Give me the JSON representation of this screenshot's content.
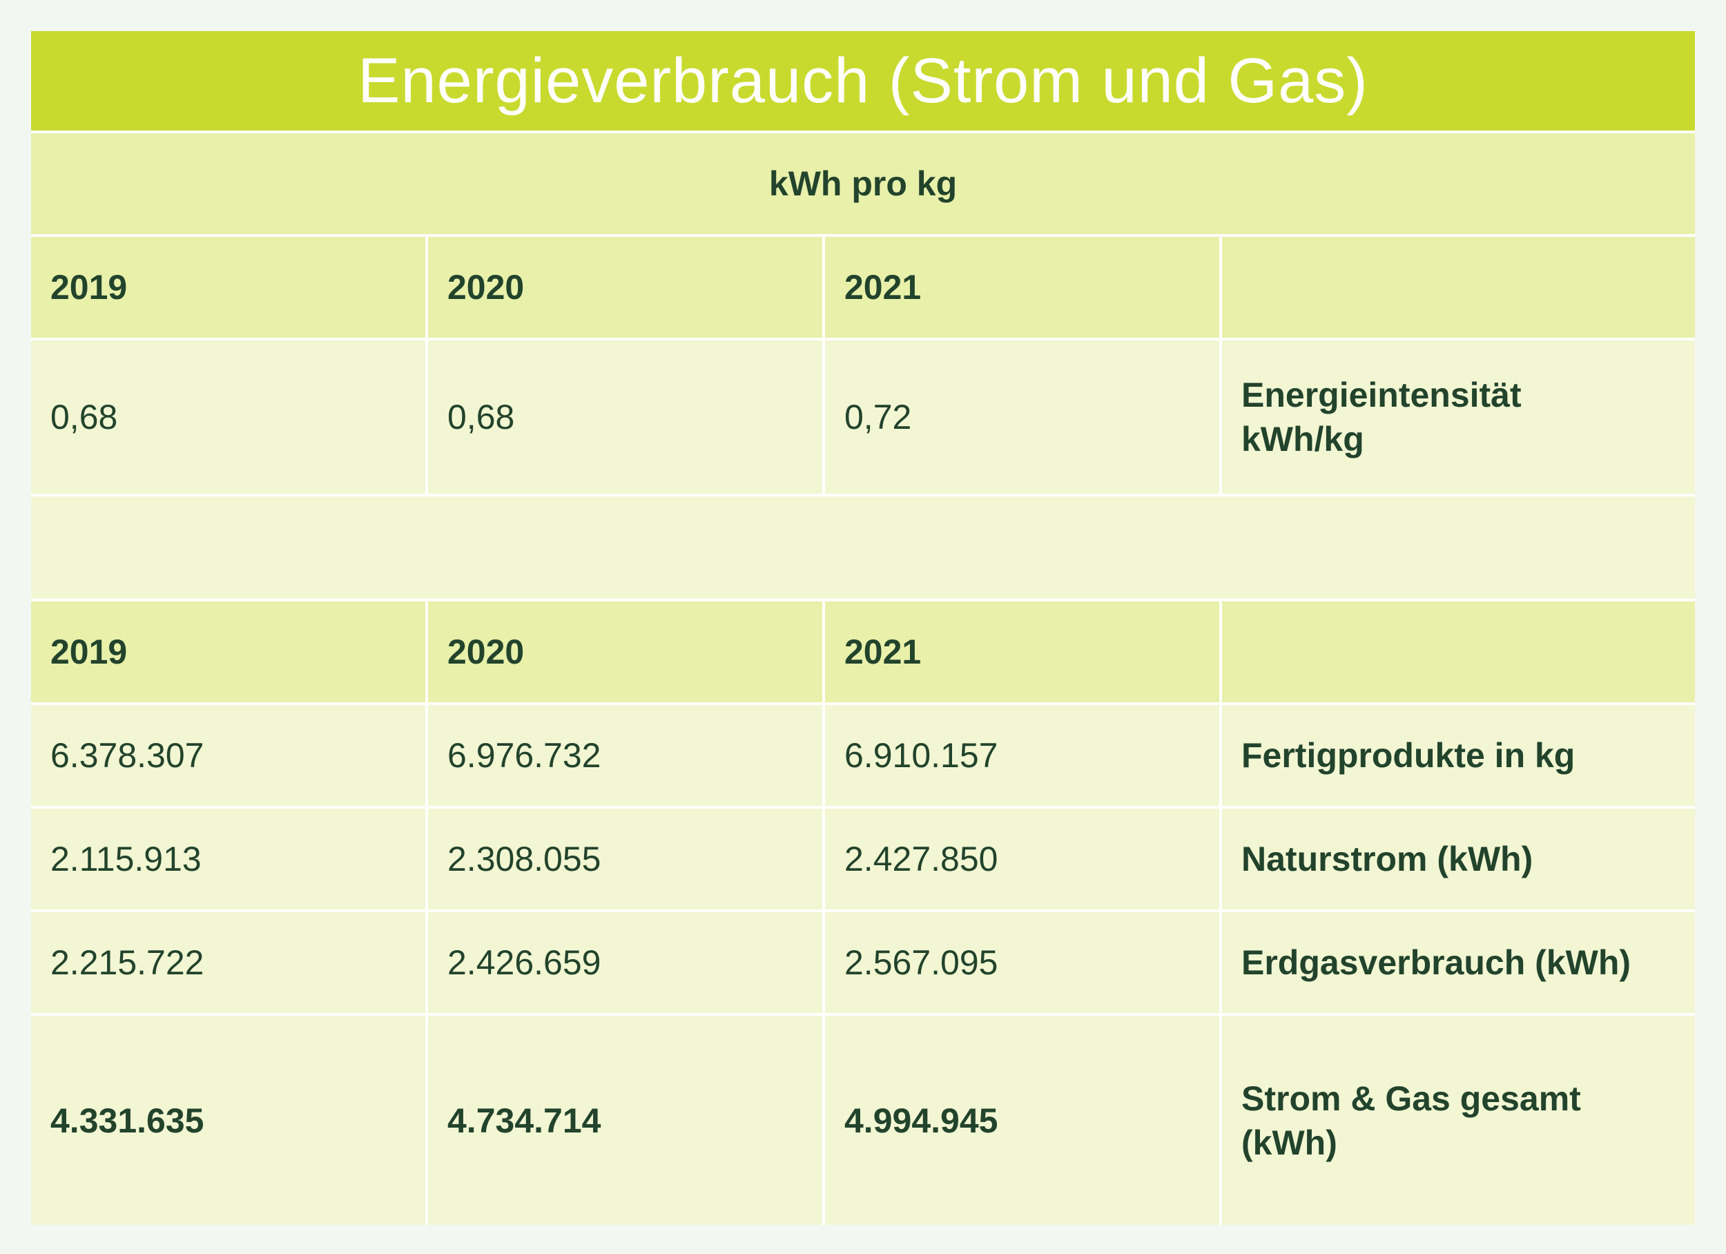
{
  "title": "Energieverbrauch (Strom und Gas)",
  "unit": "kWh pro kg",
  "intensity_table": {
    "headers": [
      "2019",
      "2020",
      "2021",
      ""
    ],
    "row": {
      "values": [
        "0,68",
        "0,68",
        "0,72"
      ],
      "label": "Energieintensität kWh/kg"
    }
  },
  "consumption_table": {
    "headers": [
      "2019",
      "2020",
      "2021",
      ""
    ],
    "rows": [
      {
        "values": [
          "6.378.307",
          "6.976.732",
          "6.910.157"
        ],
        "label": "Fertigprodukte in kg"
      },
      {
        "values": [
          "2.115.913",
          "2.308.055",
          "2.427.850"
        ],
        "label": "Naturstrom (kWh)"
      },
      {
        "values": [
          "2.215.722",
          "2.426.659",
          "2.567.095"
        ],
        "label": "Erdgasverbrauch (kWh)"
      },
      {
        "values": [
          "4.331.635",
          "4.734.714",
          "4.994.945"
        ],
        "label": "Strom & Gas gesamt (kWh)"
      }
    ]
  },
  "colors": {
    "title_bg": "#c9da2f",
    "header_bg": "#e8f0aa",
    "body_bg": "#f2f6d3",
    "text": "#22432c"
  }
}
